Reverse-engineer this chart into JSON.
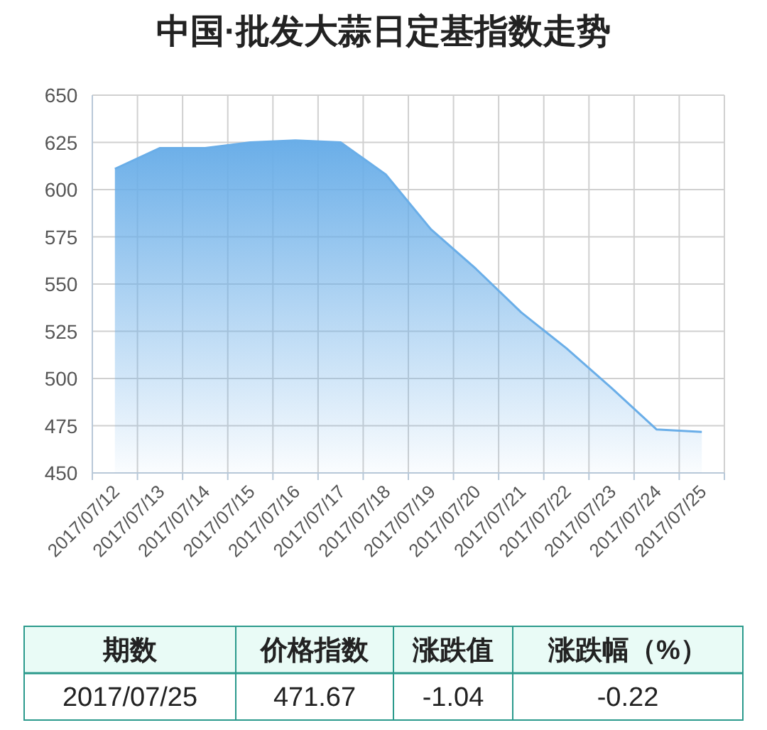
{
  "chart_data": {
    "type": "area",
    "title": "中国·批发大蒜日定基指数走势",
    "categories": [
      "2017/07/12",
      "2017/07/13",
      "2017/07/14",
      "2017/07/15",
      "2017/07/16",
      "2017/07/17",
      "2017/07/18",
      "2017/07/19",
      "2017/07/20",
      "2017/07/21",
      "2017/07/22",
      "2017/07/23",
      "2017/07/24",
      "2017/07/25"
    ],
    "series": [
      {
        "color": "#6aaee8",
        "values": [
          611,
          622,
          622,
          625,
          626,
          625,
          608,
          579,
          558,
          535,
          516,
          495,
          473,
          471.67
        ]
      }
    ],
    "ylim": [
      450,
      650
    ],
    "yticks": [
      450,
      475,
      500,
      525,
      550,
      575,
      600,
      625,
      650
    ],
    "grid": true,
    "annotations": [
      "期数",
      "价格指数",
      "涨跌值",
      "涨跌幅（%）",
      "2017/07/25",
      "471.67",
      "-1.04",
      "-0.22"
    ]
  }
}
